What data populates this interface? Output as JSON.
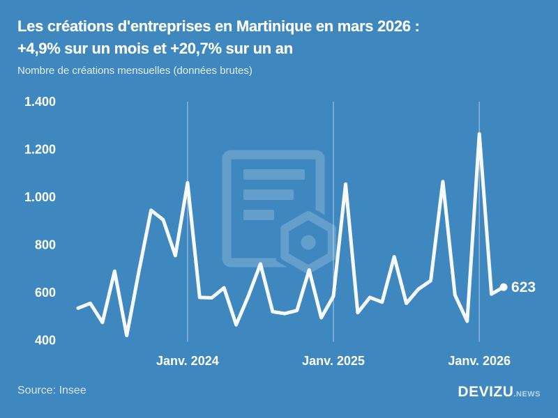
{
  "page": {
    "background_color": "#3e88bf",
    "accent_text_color": "#ffffff"
  },
  "header": {
    "title_line1": "Les créations d'entreprises en Martinique en mars 2026 :",
    "title_line2": "+4,9% sur un mois et +20,7% sur un an",
    "subtitle": "Nombre de créations mensuelles (données brutes)"
  },
  "footer": {
    "source": "Source: Insee",
    "brand": "DEVIZU",
    "brand_suffix": ".NEWS"
  },
  "chart_data": {
    "type": "line",
    "title": "Les créations d'entreprises en Martinique en mars 2026 : +4,9% sur un mois et +20,7% sur un an",
    "subtitle": "Nombre de créations mensuelles (données brutes)",
    "x": [
      "avr. 2023",
      "mai 2023",
      "juin 2023",
      "juil. 2023",
      "août 2023",
      "sept. 2023",
      "oct. 2023",
      "nov. 2023",
      "déc. 2023",
      "janv. 2024",
      "févr. 2024",
      "mars 2024",
      "avr. 2024",
      "mai 2024",
      "juin 2024",
      "juil. 2024",
      "août 2024",
      "sept. 2024",
      "oct. 2024",
      "nov. 2024",
      "déc. 2024",
      "janv. 2025",
      "févr. 2025",
      "mars 2025",
      "avr. 2025",
      "mai 2025",
      "juin 2025",
      "juil. 2025",
      "août 2025",
      "sept. 2025",
      "oct. 2025",
      "nov. 2025",
      "déc. 2025",
      "janv. 2026",
      "févr. 2026",
      "mars 2026"
    ],
    "values": [
      535,
      555,
      475,
      690,
      420,
      690,
      945,
      905,
      755,
      1060,
      580,
      578,
      620,
      465,
      585,
      720,
      520,
      512,
      525,
      695,
      495,
      585,
      1055,
      516,
      580,
      560,
      750,
      555,
      615,
      650,
      1065,
      590,
      480,
      1265,
      594,
      623
    ],
    "highlight": {
      "label": "623",
      "month": "mars 2026",
      "value": 623
    },
    "yticks": {
      "values": [
        400,
        600,
        800,
        1000,
        1200,
        1400
      ],
      "labels": [
        "400",
        "600",
        "800",
        "1.000",
        "1.200",
        "1.400"
      ]
    },
    "xticks": [
      {
        "index": 9,
        "label": "Janv. 2024"
      },
      {
        "index": 21,
        "label": "Janv. 2025"
      },
      {
        "index": 33,
        "label": "Janv. 2026"
      }
    ],
    "ylim": [
      400,
      1400
    ],
    "line_color": "#f6fafd",
    "grid": "vertical-only",
    "legend": "none"
  }
}
